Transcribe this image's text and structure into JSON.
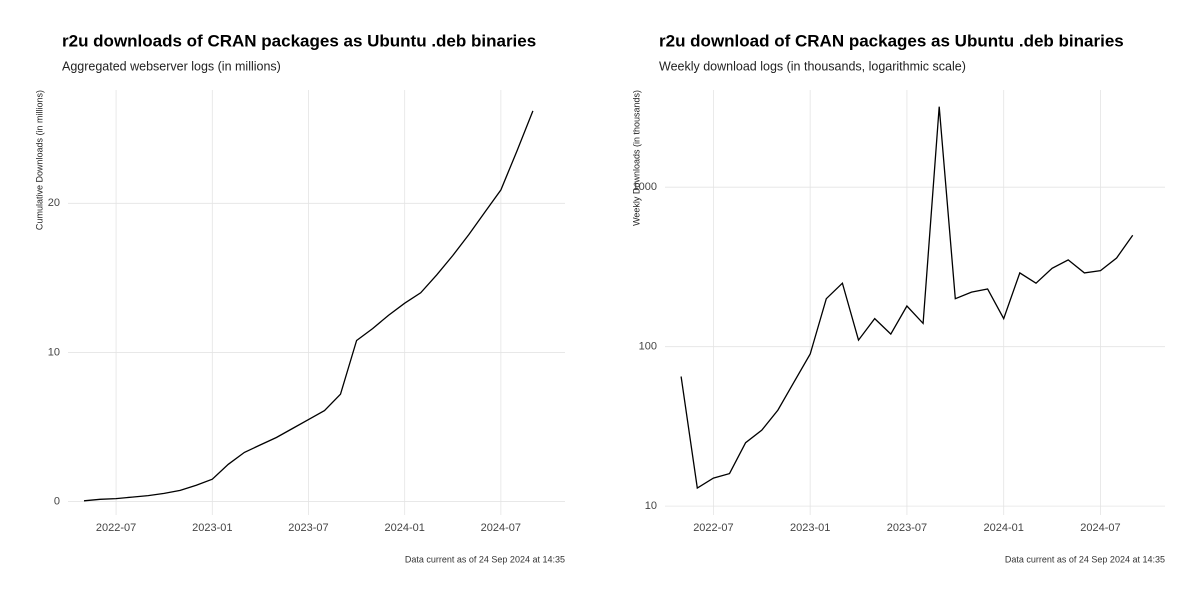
{
  "chart_data": [
    {
      "type": "line",
      "title": "r2u downloads of CRAN packages as Ubuntu .deb binaries",
      "subtitle": "Aggregated webserver logs (in millions)",
      "y_label": "Cumulative Downloads (in millions)",
      "caption": "Data current as of  24 Sep 2024 at 14:35",
      "x": [
        "2022-05",
        "2022-06",
        "2022-07",
        "2022-08",
        "2022-09",
        "2022-10",
        "2022-11",
        "2022-12",
        "2023-01",
        "2023-02",
        "2023-03",
        "2023-04",
        "2023-05",
        "2023-06",
        "2023-07",
        "2023-08",
        "2023-09",
        "2023-10",
        "2023-11",
        "2023-12",
        "2024-01",
        "2024-02",
        "2024-03",
        "2024-04",
        "2024-05",
        "2024-06",
        "2024-07",
        "2024-08",
        "2024-09"
      ],
      "values": [
        0.05,
        0.15,
        0.2,
        0.3,
        0.4,
        0.55,
        0.75,
        1.1,
        1.5,
        2.5,
        3.3,
        3.8,
        4.3,
        4.9,
        5.5,
        6.1,
        7.2,
        10.8,
        11.6,
        12.5,
        13.3,
        14.0,
        15.2,
        16.5,
        17.9,
        19.4,
        20.9,
        23.5,
        26.2
      ],
      "color": "#000000",
      "xlim": [
        "2022-04",
        "2024-11"
      ],
      "xticks": [
        "2022-07",
        "2023-01",
        "2023-07",
        "2024-01",
        "2024-07"
      ],
      "ylim": [
        -0.9,
        27.6
      ],
      "yticks": [
        0,
        10,
        20
      ],
      "log_scale": false,
      "grid": true
    },
    {
      "type": "line",
      "title": "r2u download of CRAN packages as Ubuntu .deb binaries",
      "subtitle": "Weekly download logs (in thousands, logarithmic scale)",
      "y_label": "Weekly Downloads (in thousands)",
      "caption": "Data current as of  24 Sep 2024 at 14:35",
      "x": [
        "2022-05",
        "2022-06",
        "2022-07",
        "2022-08",
        "2022-09",
        "2022-10",
        "2022-11",
        "2022-12",
        "2023-01",
        "2023-02",
        "2023-03",
        "2023-04",
        "2023-05",
        "2023-06",
        "2023-07",
        "2023-08",
        "2023-09",
        "2023-10",
        "2023-11",
        "2023-12",
        "2024-01",
        "2024-02",
        "2024-03",
        "2024-04",
        "2024-05",
        "2024-06",
        "2024-07",
        "2024-08",
        "2024-09"
      ],
      "values": [
        65,
        13,
        15,
        16,
        25,
        30,
        40,
        60,
        90,
        200,
        250,
        110,
        150,
        120,
        180,
        140,
        3200,
        200,
        220,
        230,
        150,
        290,
        250,
        310,
        350,
        290,
        300,
        360,
        500
      ],
      "color": "#000000",
      "xlim": [
        "2022-04",
        "2024-11"
      ],
      "xticks": [
        "2022-07",
        "2023-01",
        "2023-07",
        "2024-01",
        "2024-07"
      ],
      "ylim": [
        8.8,
        4070
      ],
      "yticks": [
        10,
        100,
        1000
      ],
      "log_scale": true,
      "grid": true
    }
  ]
}
